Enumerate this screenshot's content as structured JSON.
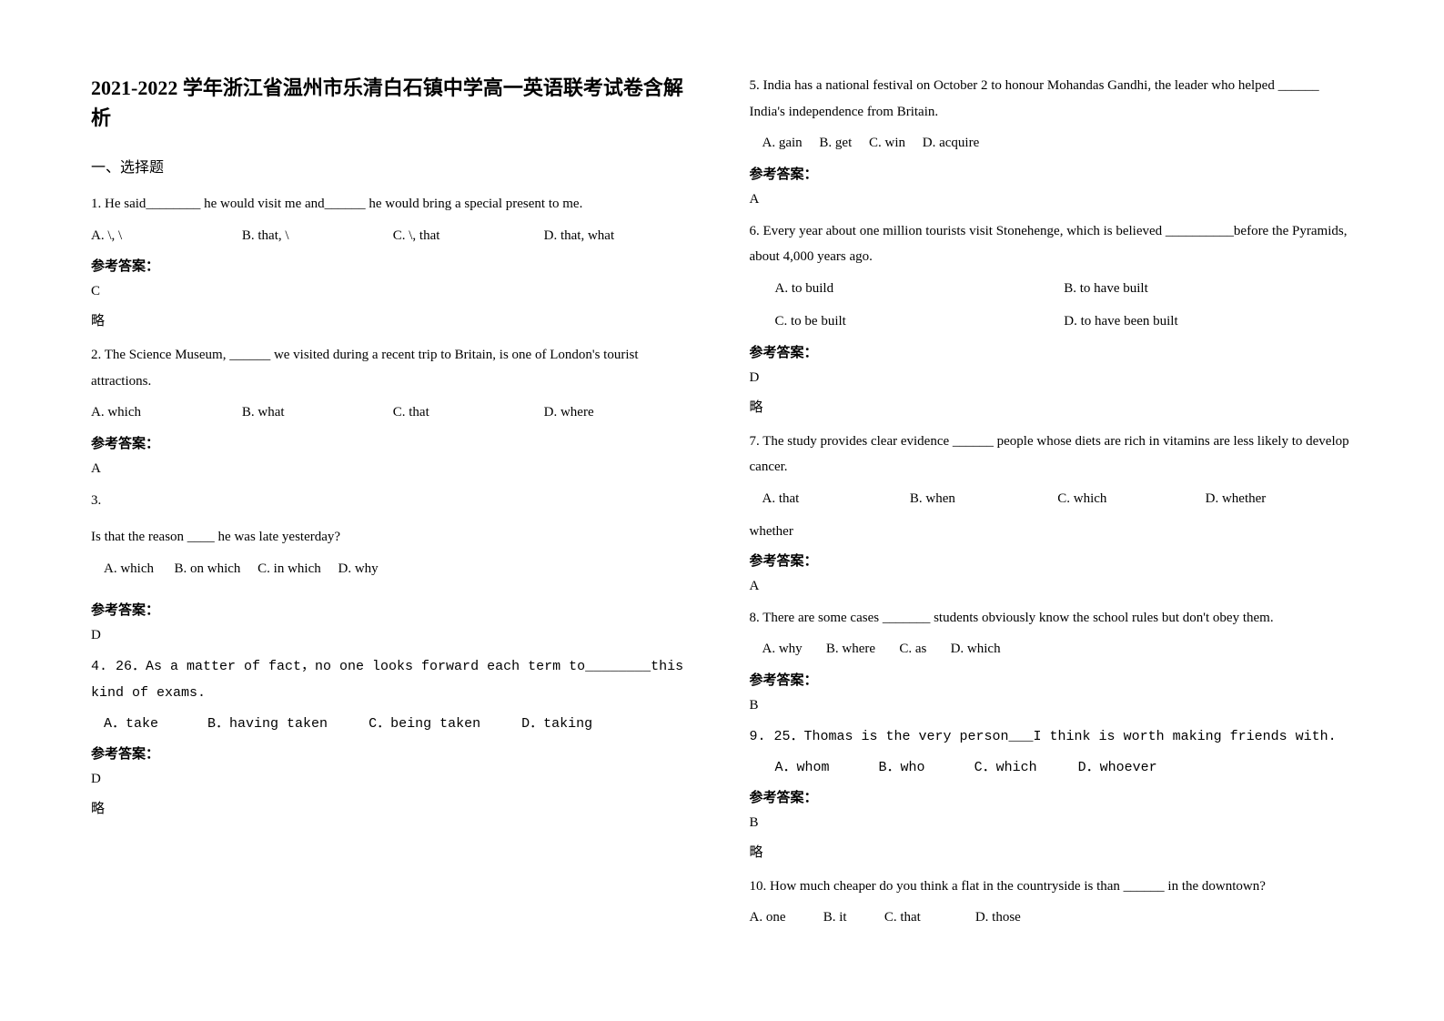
{
  "title": "2021-2022 学年浙江省温州市乐清白石镇中学高一英语联考试卷含解析",
  "section": "一、选择题",
  "answer_label": "参考答案：",
  "brief_label": "略",
  "questions": [
    {
      "num": "1",
      "text": "1. He said________ he would visit me and______ he would bring a special present to me.",
      "options": [
        "A. \\, \\",
        "B. that, \\",
        "C. \\, that",
        "D. that, what"
      ],
      "answer": "C"
    },
    {
      "num": "2",
      "text": "2. The Science Museum, ______ we visited during a recent trip to Britain, is one of London's tourist attractions.",
      "options": [
        "A. which",
        "B. what",
        "C. that",
        "D. where"
      ],
      "answer": "A"
    },
    {
      "num": "3",
      "text_lead": "3.",
      "text": " Is that the reason ____ he was late yesterday?",
      "options": [
        "A. which",
        "B. on which",
        "C. in which",
        "D. why"
      ],
      "answer": "D"
    },
    {
      "num": "4",
      "text": "4. 26．As a matter of fact，no one looks forward each term to________this kind of exams.",
      "options": [
        "A．take",
        "B．having taken",
        "C．being taken",
        "D．taking"
      ],
      "answer": "D"
    },
    {
      "num": "5",
      "text": "5.  India has a national festival on October 2 to honour Mohandas Gandhi, the leader who helped ______ India's independence from Britain.",
      "options": [
        "A. gain",
        "B. get",
        "C. win",
        "D. acquire"
      ],
      "answer": "A"
    },
    {
      "num": "6",
      "text": "6. Every year about one million tourists visit Stonehenge, which is believed __________before the Pyramids, about 4,000 years ago.",
      "options": [
        "A. to build",
        "B. to have built",
        "C. to be built",
        "D. to have been built"
      ],
      "answer": "D"
    },
    {
      "num": "7",
      "text": "7. The study provides clear evidence ______ people whose diets are rich in vitamins are less likely to develop cancer.",
      "options": [
        "A. that",
        "B. when",
        "C. which",
        "D. whether"
      ],
      "answer": "A"
    },
    {
      "num": "8",
      "text": "8.  There are some cases _______ students obviously know the school rules but don't obey them.",
      "options": [
        "A. why",
        "B. where",
        "C. as",
        "D. which"
      ],
      "answer": "B"
    },
    {
      "num": "9",
      "text": "9. 25．Thomas is the very person___I think is worth making friends with.",
      "options": [
        "A．whom",
        "B．who",
        "C．which",
        "D．whoever"
      ],
      "answer": "B"
    },
    {
      "num": "10",
      "text": "10. How much cheaper do you think a flat in the countryside is than ______ in the downtown?",
      "options": [
        "A. one",
        "B. it",
        "C. that",
        "D. those"
      ]
    }
  ]
}
